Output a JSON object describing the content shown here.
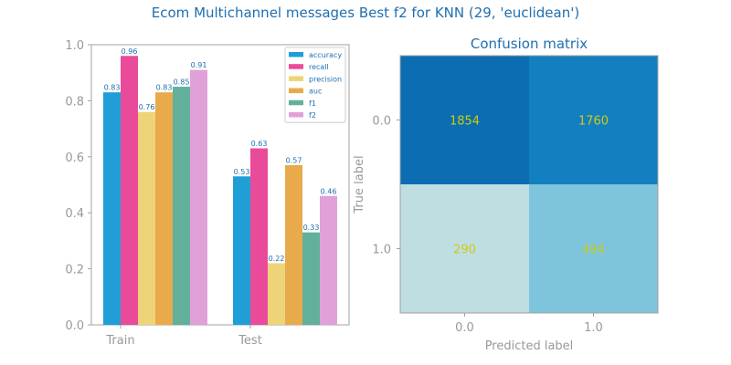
{
  "figure": {
    "suptitle": "Ecom Multichannel messages Best f2 for KNN (29, 'euclidean')"
  },
  "chart_data": [
    {
      "type": "bar",
      "title": "",
      "xlabel": "",
      "ylabel": "",
      "categories": [
        "Train",
        "Test"
      ],
      "ylim": [
        0,
        1
      ],
      "yticks": [
        "0.0",
        "0.2",
        "0.4",
        "0.6",
        "0.8",
        "1.0"
      ],
      "grid": false,
      "legend_position": "top-right",
      "series": [
        {
          "name": "accuracy",
          "color": "#1f9fd6",
          "values": [
            0.83,
            0.53
          ],
          "labels": [
            "0.83",
            "0.53"
          ]
        },
        {
          "name": "recall",
          "color": "#ea4a9a",
          "values": [
            0.96,
            0.63
          ],
          "labels": [
            "0.96",
            "0.63"
          ]
        },
        {
          "name": "precision",
          "color": "#eed478",
          "values": [
            0.76,
            0.22
          ],
          "labels": [
            "0.76",
            "0.22"
          ]
        },
        {
          "name": "auc",
          "color": "#e8aa4a",
          "values": [
            0.83,
            0.57
          ],
          "labels": [
            "0.83",
            "0.57"
          ]
        },
        {
          "name": "f1",
          "color": "#62b09c",
          "values": [
            0.85,
            0.33
          ],
          "labels": [
            "0.85",
            "0.33"
          ]
        },
        {
          "name": "f2",
          "color": "#e0a1d8",
          "values": [
            0.91,
            0.46
          ],
          "labels": [
            "0.91",
            "0.46"
          ]
        }
      ]
    },
    {
      "type": "heatmap",
      "title": "Confusion matrix",
      "xlabel": "Predicted label",
      "ylabel": "True label",
      "x_ticks": [
        "0.0",
        "1.0"
      ],
      "y_ticks": [
        "0.0",
        "1.0"
      ],
      "matrix": [
        [
          1854,
          1760
        ],
        [
          290,
          494
        ]
      ],
      "cell_colors": [
        [
          "#0c6db2",
          "#137fc0"
        ],
        [
          "#bedee2",
          "#7ec4dc"
        ]
      ],
      "value_color": "#cccc11"
    }
  ]
}
